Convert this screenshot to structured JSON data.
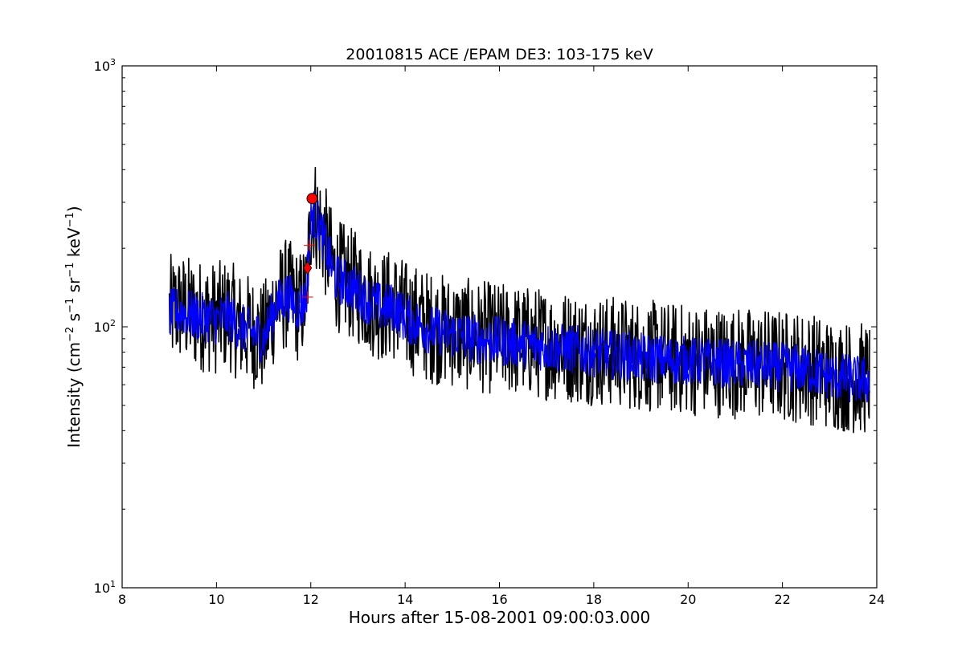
{
  "chart_data": {
    "type": "line",
    "title": "20010815 ACE /EPAM DE3: 103-175 keV",
    "xlabel": "Hours after 15-08-2001 09:00:03.000",
    "ylabel": "Intensity (cm⁻² s⁻¹ sr⁻¹ keV⁻¹)",
    "ylabel_parts": {
      "base": "Intensity (cm",
      "exp1": "−2",
      "mid1": " s",
      "exp2": "−1",
      "mid2": " sr",
      "exp3": "−1",
      "mid3": " keV",
      "exp4": "−1",
      "end": ")"
    },
    "xlim": [
      8,
      24
    ],
    "ylim": [
      10,
      1000
    ],
    "yscale": "log",
    "grid": false,
    "x_ticks": [
      {
        "value": 8,
        "label": "8"
      },
      {
        "value": 10,
        "label": "10"
      },
      {
        "value": 12,
        "label": "12"
      },
      {
        "value": 14,
        "label": "14"
      },
      {
        "value": 16,
        "label": "16"
      },
      {
        "value": 18,
        "label": "18"
      },
      {
        "value": 20,
        "label": "20"
      },
      {
        "value": 22,
        "label": "22"
      },
      {
        "value": 24,
        "label": "24"
      }
    ],
    "y_ticks": [
      {
        "value": 10,
        "base": "10",
        "exp": "1"
      },
      {
        "value": 100,
        "base": "10",
        "exp": "2"
      },
      {
        "value": 1000,
        "base": "10",
        "exp": "3"
      }
    ],
    "series": [
      {
        "color": "#000000",
        "x": [
          9.0,
          9.25,
          9.5,
          9.75,
          10.0,
          10.25,
          10.5,
          10.75,
          11.0,
          11.25,
          11.5,
          11.75,
          11.9,
          12.0,
          12.05,
          12.1,
          12.25,
          12.5,
          12.75,
          13.0,
          13.25,
          13.5,
          13.75,
          14.0,
          14.5,
          15.0,
          15.5,
          16.0,
          16.5,
          17.0,
          17.5,
          18.0,
          18.5,
          19.0,
          19.5,
          20.0,
          20.5,
          21.0,
          21.5,
          22.0,
          22.5,
          23.0,
          23.5,
          23.85
        ],
        "values": [
          115,
          118,
          112,
          110,
          108,
          112,
          100,
          96,
          90,
          122,
          135,
          118,
          130,
          260,
          290,
          270,
          230,
          160,
          150,
          140,
          128,
          120,
          122,
          110,
          100,
          96,
          92,
          90,
          88,
          86,
          84,
          82,
          80,
          78,
          76,
          75,
          74,
          73,
          72,
          71,
          70,
          66,
          64,
          63
        ],
        "noise": 0.5
      },
      {
        "color": "#0000ff",
        "x": [
          9.0,
          9.25,
          9.5,
          9.75,
          10.0,
          10.25,
          10.5,
          10.75,
          11.0,
          11.25,
          11.5,
          11.75,
          11.9,
          12.0,
          12.05,
          12.1,
          12.25,
          12.5,
          12.75,
          13.0,
          13.25,
          13.5,
          13.75,
          14.0,
          14.5,
          15.0,
          15.5,
          16.0,
          16.5,
          17.0,
          17.5,
          18.0,
          18.5,
          19.0,
          19.5,
          20.0,
          20.5,
          21.0,
          21.5,
          22.0,
          22.5,
          23.0,
          23.5,
          23.85
        ],
        "values": [
          112,
          115,
          110,
          108,
          106,
          110,
          99,
          95,
          90,
          120,
          132,
          117,
          128,
          250,
          280,
          262,
          222,
          155,
          146,
          136,
          125,
          118,
          119,
          108,
          98,
          94,
          90,
          88,
          86,
          84,
          82,
          80,
          78,
          76,
          75,
          74,
          73,
          72,
          71,
          70,
          69,
          65,
          63,
          62
        ],
        "noise": 0.22
      }
    ],
    "markers": [
      {
        "type": "circle",
        "x": 12.03,
        "y": 310,
        "color": "#ff0000"
      },
      {
        "type": "diamond",
        "x": 11.93,
        "y": 168,
        "color": "#ff0000"
      },
      {
        "type": "plus",
        "x": 11.97,
        "y": 205,
        "color": "#ff0000"
      },
      {
        "type": "plus",
        "x": 11.93,
        "y": 130,
        "color": "#ff0000"
      }
    ]
  }
}
